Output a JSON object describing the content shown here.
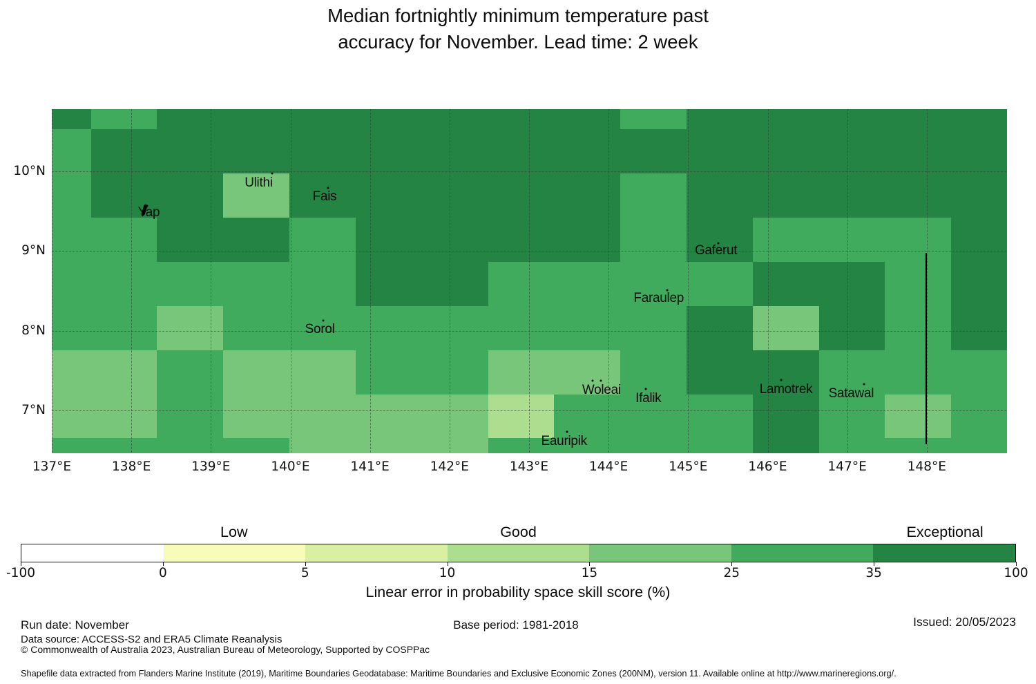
{
  "title": {
    "line1": "Median fortnightly minimum temperature past",
    "line2": "accuracy for November. Lead time: 2 week"
  },
  "chart_data": {
    "type": "heatmap",
    "map_extent": {
      "lon_min": 137.0,
      "lon_max": 149.0,
      "lat_min": 6.47,
      "lat_max": 10.78
    },
    "grid": {
      "lon_edges": [
        137.0,
        137.492,
        138.324,
        139.156,
        139.988,
        140.82,
        141.652,
        142.484,
        143.316,
        144.148,
        144.98,
        145.812,
        146.644,
        147.476,
        148.308,
        149.0
      ],
      "lat_edges": [
        10.78,
        10.529,
        9.974,
        9.42,
        8.866,
        8.311,
        7.757,
        7.202,
        6.648,
        6.47
      ],
      "cells": [
        "DMDDDDDDDMDDDDD",
        "MDDDDDDDDDDDDDD",
        "MDDLDDDDDMDDDDD",
        "MMDDMDDDDMDMMMD",
        "MMMMMDDMMMMDDMD",
        "MMLMMMMMMMDLDMD",
        "LLMLLMMLLMDDMMM",
        "LLMLLLLPMMMDMLM",
        "MMMMLLLMMMMDMMM"
      ]
    },
    "palette": {
      "D": "#238443",
      "M": "#41ab5d",
      "L": "#78c679",
      "P": "#addd8e",
      "Y": "#d9f0a3",
      "F": "#f7fcb9",
      "W": "#ffffff"
    },
    "class_skill_ranges": {
      "D": "35 to 100",
      "M": "25 to 35",
      "L": "15 to 25",
      "P": "10 to 15",
      "Y": "5 to 10",
      "F": "0 to 5",
      "W": "-100 to 0"
    },
    "islands": [
      {
        "name": "Yap",
        "lon": 138.22,
        "lat": 9.48,
        "dots": [
          [
            138.2,
            9.57
          ]
        ],
        "shape": [
          138.16,
          9.51
        ]
      },
      {
        "name": "Ulithi",
        "lon": 139.6,
        "lat": 9.85,
        "dots": [
          [
            139.77,
            9.97
          ]
        ]
      },
      {
        "name": "Fais",
        "lon": 140.43,
        "lat": 9.68,
        "dots": [
          [
            140.47,
            9.79
          ]
        ]
      },
      {
        "name": "Gaferut",
        "lon": 145.35,
        "lat": 9.0,
        "dots": [
          [
            145.38,
            9.1
          ]
        ]
      },
      {
        "name": "Faraulep",
        "lon": 144.63,
        "lat": 8.4,
        "dots": [
          [
            144.74,
            8.51
          ]
        ]
      },
      {
        "name": "Sorol",
        "lon": 140.37,
        "lat": 8.01,
        "dots": [
          [
            140.41,
            8.13
          ]
        ]
      },
      {
        "name": "Woleai",
        "lon": 143.91,
        "lat": 7.25,
        "dots": [
          [
            143.8,
            7.37
          ],
          [
            143.9,
            7.37
          ]
        ]
      },
      {
        "name": "Ifalik",
        "lon": 144.5,
        "lat": 7.15,
        "dots": [
          [
            144.47,
            7.27
          ]
        ]
      },
      {
        "name": "Lamotrek",
        "lon": 146.23,
        "lat": 7.26,
        "dots": [
          [
            146.17,
            7.38
          ]
        ]
      },
      {
        "name": "Satawal",
        "lon": 147.05,
        "lat": 7.21,
        "dots": [
          [
            147.21,
            7.33
          ]
        ]
      },
      {
        "name": "Eauripik",
        "lon": 143.44,
        "lat": 6.61,
        "dots": [
          [
            143.48,
            6.73
          ]
        ]
      }
    ],
    "boundary_line": {
      "lon": 147.99,
      "lat_top": 8.98,
      "lat_bottom": 6.57
    },
    "x_ticks": [
      {
        "value": 137,
        "label": "137°E"
      },
      {
        "value": 138,
        "label": "138°E"
      },
      {
        "value": 139,
        "label": "139°E"
      },
      {
        "value": 140,
        "label": "140°E"
      },
      {
        "value": 141,
        "label": "141°E"
      },
      {
        "value": 142,
        "label": "142°E"
      },
      {
        "value": 143,
        "label": "143°E"
      },
      {
        "value": 144,
        "label": "144°E"
      },
      {
        "value": 145,
        "label": "145°E"
      },
      {
        "value": 146,
        "label": "146°E"
      },
      {
        "value": 147,
        "label": "147°E"
      },
      {
        "value": 148,
        "label": "148°E"
      }
    ],
    "y_ticks": [
      {
        "value": 10,
        "label": "10°N"
      },
      {
        "value": 9,
        "label": "9°N"
      },
      {
        "value": 8,
        "label": "8°N"
      },
      {
        "value": 7,
        "label": "7°N"
      }
    ],
    "colorbar": {
      "segments": [
        {
          "from": -100,
          "to": 0,
          "color": "#ffffff"
        },
        {
          "from": 0,
          "to": 5,
          "color": "#f7fcb9"
        },
        {
          "from": 5,
          "to": 10,
          "color": "#d9f0a3"
        },
        {
          "from": 10,
          "to": 15,
          "color": "#addd8e"
        },
        {
          "from": 15,
          "to": 25,
          "color": "#78c679"
        },
        {
          "from": 25,
          "to": 35,
          "color": "#41ab5d"
        },
        {
          "from": 35,
          "to": 100,
          "color": "#238443"
        }
      ],
      "tick_labels": [
        "-100",
        "0",
        "5",
        "10",
        "15",
        "25",
        "35",
        "100"
      ],
      "categories": [
        {
          "label": "Low",
          "segment_index": 1
        },
        {
          "label": "Good",
          "segment_index": 3
        },
        {
          "label": "Exceptional",
          "segment_index": 6
        }
      ],
      "axis_label": "Linear error in probability space skill score (%)"
    }
  },
  "footer": {
    "run_date": "Run date: November",
    "base_period": "Base period: 1981-2018",
    "issued": "Issued: 20/05/2023",
    "data_source": "Data source: ACCESS-S2 and ERA5 Climate Reanalysis",
    "copyright": "© Commonwealth of Australia 2023, Australian Bureau of Meteorology, Supported by COSPPac",
    "shapefile_note": "Shapefile data extracted from Flanders Marine Institute (2019), Maritime Boundaries Geodatabase: Maritime Boundaries and Exclusive Economic Zones (200NM), version 11. Available online at http://www.marineregions.org/."
  }
}
